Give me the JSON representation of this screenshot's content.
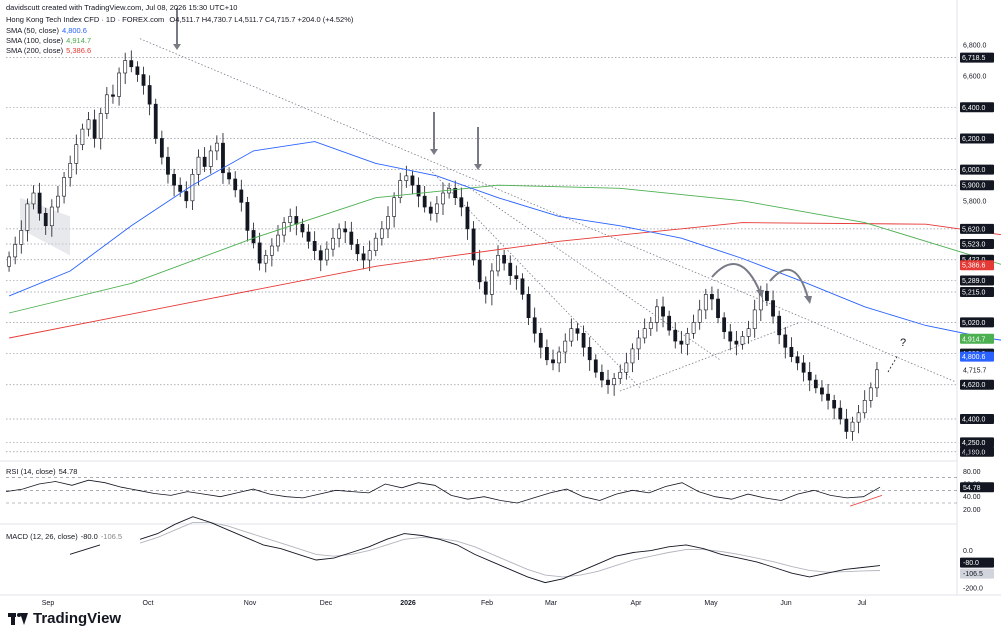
{
  "header": {
    "attribution": "davidscutt created with TradingView.com, Jul 08, 2026 15:30 UTC+10",
    "symbol": "Hong Kong Tech Index CFD · 1D · FOREX.com",
    "ohlc": "O4,511.7 H4,730.7 L4,511.7 C4,715.7 +204.0 (+4.52%)",
    "sma50": {
      "label": "SMA (50, close)",
      "value": "4,800.6",
      "color": "#2962ff"
    },
    "sma100": {
      "label": "SMA (100, close)",
      "value": "4,914.7",
      "color": "#4caf50"
    },
    "sma200": {
      "label": "SMA (200, close)",
      "value": "5,386.6",
      "color": "#e53935"
    }
  },
  "rsi_legend": {
    "label": "RSI (14, close)",
    "value": "54.78"
  },
  "macd_legend": {
    "label": "MACD (12, 26, close)",
    "v1": "-80.0",
    "v2": "-106.5"
  },
  "annotation_question": "?",
  "footer_brand": "TradingView",
  "chart_data": {
    "type": "candlestick",
    "x_ticks": [
      "Sep",
      "Oct",
      "Nov",
      "Dec",
      "2026",
      "Feb",
      "Mar",
      "Apr",
      "May",
      "Jun",
      "Jul"
    ],
    "price_axis_ticks": [
      "6,800.0",
      "6,600.0",
      "5,800.0",
      "4,715.7",
      "4,190.0"
    ],
    "horizontal_levels": [
      {
        "value": 6718.5,
        "label": "6,718.5"
      },
      {
        "value": 6400.0,
        "label": "6,400.0"
      },
      {
        "value": 6200.0,
        "label": "6,200.0"
      },
      {
        "value": 6000.0,
        "label": "6,000.0"
      },
      {
        "value": 5900.0,
        "label": "5,900.0"
      },
      {
        "value": 5620.0,
        "label": "5,620.0"
      },
      {
        "value": 5523.0,
        "label": "5,523.0"
      },
      {
        "value": 5422.0,
        "label": "5,422.0"
      },
      {
        "value": 5289.0,
        "label": "5,289.0"
      },
      {
        "value": 5215.0,
        "label": "5,215.0"
      },
      {
        "value": 5020.0,
        "label": "5,020.0"
      },
      {
        "value": 4820.0,
        "label": "4,820.0"
      },
      {
        "value": 4620.0,
        "label": "4,620.0"
      },
      {
        "value": 4400.0,
        "label": "4,400.0"
      },
      {
        "value": 4250.0,
        "label": "4,250.0"
      },
      {
        "value": 4190.0,
        "label": "4,190.0"
      }
    ],
    "value_tags": [
      {
        "value": 5386.6,
        "label": "5,386.6",
        "color": "#e53935"
      },
      {
        "value": 4914.7,
        "label": "4,914.7",
        "color": "#4caf50"
      },
      {
        "value": 4800.6,
        "label": "4,800.6",
        "color": "#2962ff"
      }
    ],
    "rsi_axis_ticks": [
      "80.00",
      "60.00",
      "40.00",
      "20.00"
    ],
    "rsi_levels": [
      70,
      50,
      30
    ],
    "rsi_last": "54.78",
    "macd_axis_ticks": [
      "0.0",
      "-200.0"
    ],
    "macd_tags": [
      {
        "value": -80.0,
        "label": "-80.0"
      },
      {
        "value": -106.5,
        "label": "-106.5"
      }
    ],
    "closes": [
      5440,
      5520,
      5610,
      5780,
      5850,
      5720,
      5640,
      5760,
      5830,
      5950,
      6040,
      6160,
      6260,
      6320,
      6200,
      6360,
      6480,
      6470,
      6620,
      6700,
      6660,
      6610,
      6540,
      6420,
      6200,
      6080,
      5970,
      5900,
      5860,
      5800,
      5970,
      6080,
      6020,
      6120,
      6170,
      5980,
      5940,
      5870,
      5790,
      5610,
      5530,
      5400,
      5450,
      5510,
      5580,
      5660,
      5700,
      5650,
      5600,
      5540,
      5480,
      5420,
      5490,
      5560,
      5620,
      5600,
      5520,
      5460,
      5420,
      5480,
      5560,
      5620,
      5700,
      5820,
      5930,
      5960,
      5900,
      5830,
      5760,
      5720,
      5780,
      5850,
      5880,
      5820,
      5760,
      5620,
      5420,
      5280,
      5200,
      5350,
      5450,
      5400,
      5320,
      5300,
      5200,
      5050,
      4950,
      4860,
      4780,
      4760,
      4830,
      4900,
      4980,
      4950,
      4860,
      4780,
      4700,
      4650,
      4620,
      4660,
      4700,
      4760,
      4850,
      4920,
      4980,
      5020,
      5120,
      5060,
      4970,
      4900,
      4880,
      4950,
      5020,
      5100,
      5200,
      5170,
      5050,
      4960,
      4900,
      4880,
      4930,
      4980,
      5100,
      5220,
      5160,
      5060,
      4940,
      4860,
      4800,
      4760,
      4700,
      4650,
      4600,
      4560,
      4520,
      4470,
      4400,
      4320,
      4380,
      4440,
      4520,
      4600,
      4716
    ],
    "sma50": [
      [
        0,
        5190
      ],
      [
        10,
        5350
      ],
      [
        20,
        5640
      ],
      [
        30,
        5900
      ],
      [
        40,
        6120
      ],
      [
        50,
        6180
      ],
      [
        60,
        6040
      ],
      [
        70,
        5960
      ],
      [
        80,
        5820
      ],
      [
        90,
        5700
      ],
      [
        100,
        5640
      ],
      [
        110,
        5560
      ],
      [
        120,
        5430
      ],
      [
        130,
        5280
      ],
      [
        140,
        5120
      ],
      [
        150,
        5000
      ],
      [
        160,
        4920
      ],
      [
        170,
        4860
      ],
      [
        180,
        4830
      ],
      [
        190,
        4830
      ],
      [
        196,
        4800
      ]
    ],
    "sma100": [
      [
        0,
        5080
      ],
      [
        20,
        5270
      ],
      [
        40,
        5560
      ],
      [
        60,
        5820
      ],
      [
        80,
        5900
      ],
      [
        100,
        5880
      ],
      [
        120,
        5800
      ],
      [
        140,
        5660
      ],
      [
        160,
        5420
      ],
      [
        180,
        5180
      ],
      [
        196,
        4915
      ]
    ],
    "sma200": [
      [
        0,
        4920
      ],
      [
        30,
        5150
      ],
      [
        60,
        5380
      ],
      [
        90,
        5540
      ],
      [
        120,
        5660
      ],
      [
        150,
        5650
      ],
      [
        170,
        5540
      ],
      [
        196,
        5387
      ]
    ],
    "rsi": [
      48,
      52,
      60,
      64,
      58,
      66,
      62,
      55,
      50,
      45,
      42,
      48,
      44,
      40,
      46,
      52,
      44,
      40,
      38,
      44,
      50,
      48,
      46,
      60,
      54,
      62,
      58,
      42,
      36,
      40,
      34,
      30,
      38,
      46,
      52,
      40,
      34,
      44,
      50,
      46,
      56,
      62,
      48,
      40,
      36,
      44,
      38,
      34,
      44,
      50,
      42,
      38,
      40,
      55
    ],
    "macd": [
      60,
      90,
      140,
      180,
      150,
      110,
      70,
      30,
      10,
      -20,
      -50,
      -40,
      -10,
      20,
      60,
      90,
      80,
      60,
      30,
      -20,
      -60,
      -100,
      -140,
      -170,
      -150,
      -110,
      -70,
      -30,
      -10,
      0,
      20,
      30,
      10,
      -20,
      -40,
      -60,
      -90,
      -120,
      -140,
      -120,
      -100,
      -90,
      -80
    ],
    "macd_signal": [
      40,
      70,
      110,
      150,
      150,
      130,
      100,
      70,
      40,
      10,
      -20,
      -30,
      -20,
      0,
      30,
      60,
      70,
      65,
      50,
      20,
      -20,
      -60,
      -100,
      -130,
      -140,
      -130,
      -110,
      -80,
      -50,
      -30,
      -10,
      5,
      5,
      -5,
      -20,
      -40,
      -60,
      -85,
      -105,
      -115,
      -112,
      -108,
      -106
    ]
  }
}
